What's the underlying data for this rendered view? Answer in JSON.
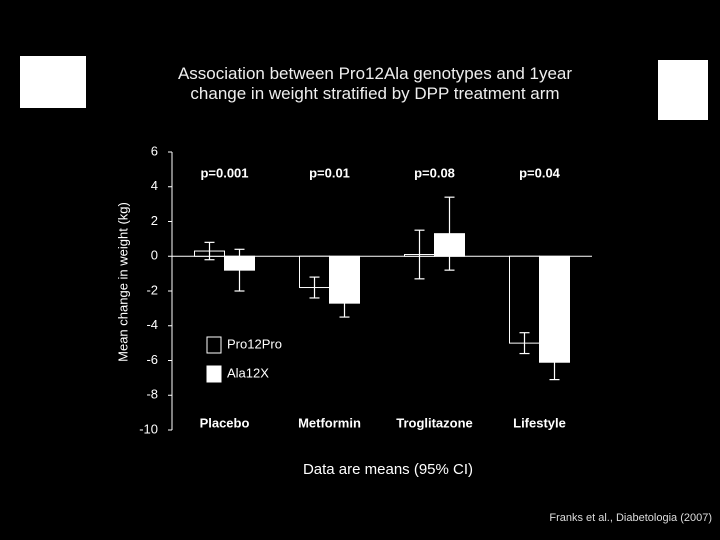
{
  "chart_data": {
    "type": "bar",
    "title": "Association between Pro12Ala genotypes and 1year change in weight stratified by DPP treatment arm",
    "y_label": "Mean change in weight (kg)",
    "x_label": "Data are means (95% CI)",
    "categories": [
      "Placebo",
      "Metformin",
      "Troglitazone",
      "Lifestyle"
    ],
    "series": [
      {
        "name": "Pro12Pro",
        "color": "#000000",
        "values": [
          0.3,
          -1.8,
          0.1,
          -5.0
        ],
        "errors": [
          0.5,
          0.6,
          1.4,
          0.6
        ]
      },
      {
        "name": "Ala12X",
        "color": "#ffffff",
        "values": [
          -0.8,
          -2.7,
          1.3,
          -6.1
        ],
        "errors": [
          1.2,
          0.8,
          2.1,
          1.0
        ]
      }
    ],
    "annotations": [
      "p=0.001",
      "p=0.01",
      "p=0.08",
      "p=0.04"
    ],
    "ylim": [
      -10,
      6
    ],
    "yticks": [
      -10,
      -8,
      -6,
      -4,
      -2,
      0,
      2,
      4,
      6
    ],
    "legend": "lower left"
  },
  "citation": "Franks et al., Diabetologia (2007)"
}
